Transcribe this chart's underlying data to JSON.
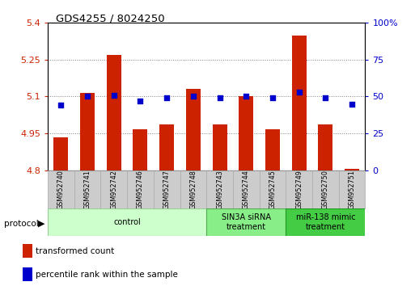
{
  "title": "GDS4255 / 8024250",
  "samples": [
    "GSM952740",
    "GSM952741",
    "GSM952742",
    "GSM952746",
    "GSM952747",
    "GSM952748",
    "GSM952743",
    "GSM952744",
    "GSM952745",
    "GSM952749",
    "GSM952750",
    "GSM952751"
  ],
  "transformed_count": [
    4.935,
    5.115,
    5.27,
    4.965,
    4.985,
    5.13,
    4.985,
    5.1,
    4.965,
    5.35,
    4.985,
    4.805
  ],
  "percentile_rank": [
    44,
    50,
    51,
    47,
    49,
    50,
    49,
    50,
    49,
    53,
    49,
    45
  ],
  "ylim_left": [
    4.8,
    5.4
  ],
  "ylim_right": [
    0,
    100
  ],
  "yticks_left": [
    4.8,
    4.95,
    5.1,
    5.25,
    5.4
  ],
  "ytick_labels_left": [
    "4.8",
    "4.95",
    "5.1",
    "5.25",
    "5.4"
  ],
  "yticks_right": [
    0,
    25,
    50,
    75,
    100
  ],
  "ytick_labels_right": [
    "0",
    "25",
    "50",
    "75",
    "100%"
  ],
  "bar_color": "#cc2200",
  "dot_color": "#0000cc",
  "bar_bottom": 4.8,
  "group_colors": [
    "#ccffcc",
    "#88ee88",
    "#44cc44"
  ],
  "group_edge_colors": [
    "#99cc99",
    "#55aa55",
    "#229922"
  ],
  "group_starts": [
    0,
    6,
    9
  ],
  "group_ends": [
    6,
    9,
    12
  ],
  "group_labels": [
    "control",
    "SIN3A siRNA\ntreatment",
    "miR-138 mimic\ntreatment"
  ],
  "protocol_label": "protocol",
  "legend_label_bar": "transformed count",
  "legend_label_dot": "percentile rank within the sample",
  "bar_color_legend": "#cc2200",
  "dot_color_legend": "#0000cc",
  "bar_width": 0.55,
  "cell_color": "#cccccc",
  "cell_edge_color": "#aaaaaa"
}
